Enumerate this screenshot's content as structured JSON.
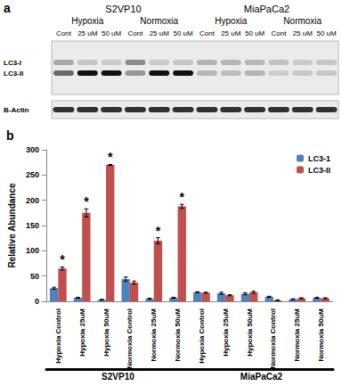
{
  "panel_labels": [
    "a",
    "b"
  ],
  "blot": {
    "cell_lines": [
      "S2VP10",
      "MiaPaCa2"
    ],
    "conditions": [
      "Hypoxia",
      "Normoxia"
    ],
    "lanes": [
      "Cont",
      "25 uM",
      "50 uM"
    ],
    "bands": [
      "LC3-I",
      "LC3-II"
    ],
    "loading_control": "B-Actin"
  },
  "chart_data": {
    "type": "bar",
    "y_label": "Relative Abundance",
    "categories": [
      "Hypoxia Control",
      "Hypoxia 25uM",
      "Hypoxia 50uM",
      "Normoxia Control",
      "Normoxia 25uM",
      "Normoxia 50uM",
      "Hypoxia Control",
      "Hypoxia 25uM",
      "Hypoxia 50uM",
      "Normoxia Control",
      "Normoxia 25uM",
      "Normoxia 50uM"
    ],
    "groups": [
      "S2VP10",
      "MiaPaCa2"
    ],
    "series": [
      {
        "name": "LC3-1",
        "color": "#4f81bd",
        "values": [
          26,
          7,
          3,
          44,
          5,
          7,
          18,
          16,
          15,
          9,
          4,
          7
        ],
        "errors": [
          2,
          1,
          1,
          4,
          1,
          1,
          1,
          2,
          2,
          1,
          1,
          1
        ]
      },
      {
        "name": "LC3-II",
        "color": "#c0504d",
        "values": [
          65,
          175,
          270,
          37,
          120,
          188,
          17,
          12,
          18,
          2,
          6,
          6
        ],
        "errors": [
          3,
          8,
          1,
          3,
          6,
          4,
          1,
          1,
          2,
          1,
          1,
          1
        ],
        "significance": [
          "*",
          "*",
          "*",
          null,
          "*",
          "*",
          null,
          null,
          null,
          null,
          null,
          null
        ]
      }
    ],
    "ylim": [
      0,
      300
    ],
    "yticks": [
      0,
      50,
      100,
      150,
      200,
      250,
      300
    ],
    "grid": false,
    "legend": "top-right"
  }
}
